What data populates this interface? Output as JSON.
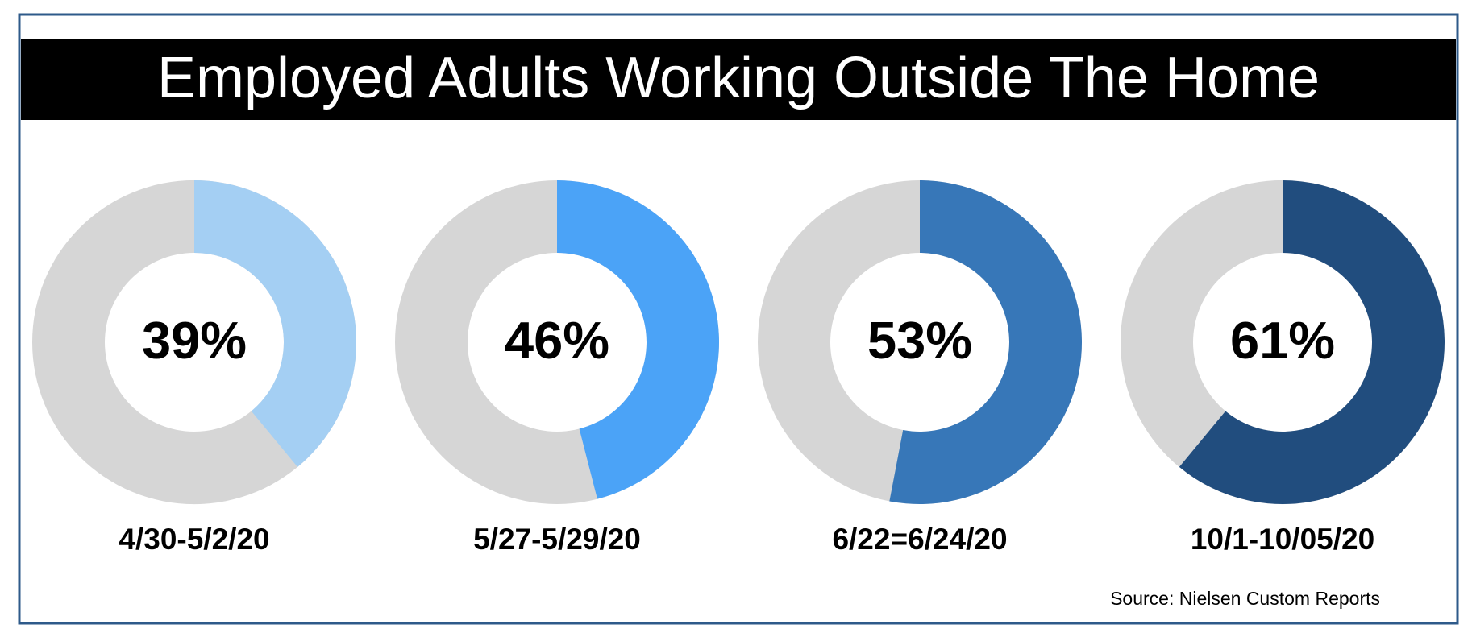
{
  "title": "Employed Adults Working Outside The Home",
  "source": "Source: Nielsen Custom Reports",
  "chart_data": [
    {
      "type": "donut",
      "label": "4/30-5/2/20",
      "values": [
        39
      ],
      "value_labels": [
        "39%"
      ],
      "color": "#a4cff3"
    },
    {
      "type": "donut",
      "label": "5/27-5/29/20",
      "values": [
        46
      ],
      "value_labels": [
        "46%"
      ],
      "color": "#4ba3f7"
    },
    {
      "type": "donut",
      "label": "6/22=6/24/20",
      "values": [
        53
      ],
      "value_labels": [
        "53%"
      ],
      "color": "#3777b8"
    },
    {
      "type": "donut",
      "label": "10/1-10/05/20",
      "values": [
        61
      ],
      "value_labels": [
        "61%"
      ],
      "color": "#214d7e"
    }
  ]
}
